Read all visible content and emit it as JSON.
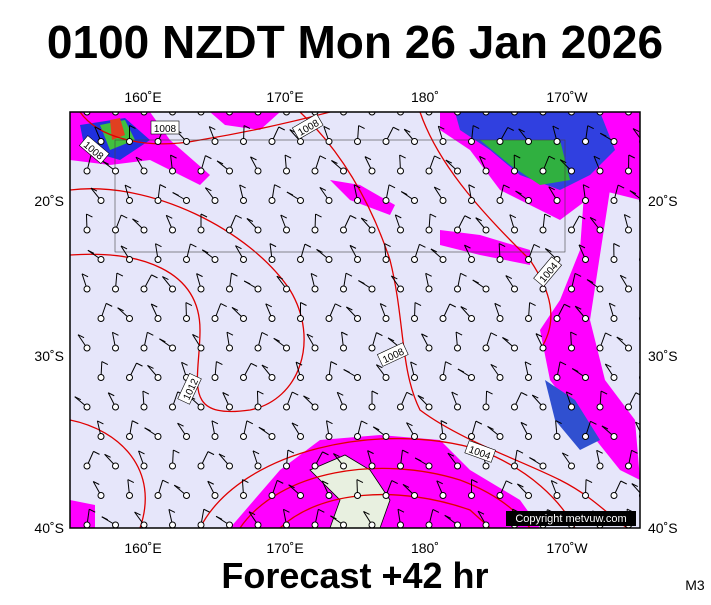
{
  "header": {
    "title": "0100 NZDT Mon 26 Jan 2026"
  },
  "map": {
    "lon_labels": [
      "160˚E",
      "170˚E",
      "180˚",
      "170˚W"
    ],
    "lat_labels": [
      "20˚S",
      "30˚S",
      "40˚S"
    ],
    "isobar_labels": [
      "1008",
      "1008",
      "1008",
      "1004",
      "1008",
      "1012",
      "1004"
    ],
    "copyright": "Copyright metvuw.com"
  },
  "footer": {
    "forecast": "Forecast +42 hr",
    "model": "M3"
  }
}
